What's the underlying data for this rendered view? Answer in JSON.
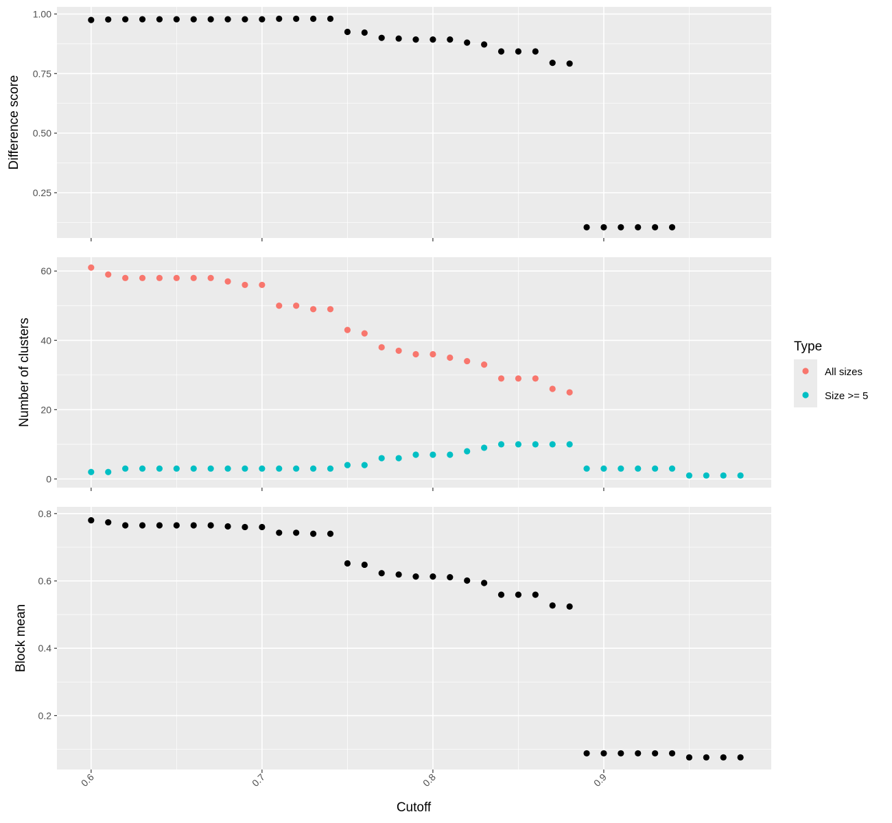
{
  "chart_data": {
    "type": "scatter",
    "xlabel": "Cutoff",
    "x_ticks": [
      0.6,
      0.7,
      0.8,
      0.9
    ],
    "x_tick_labels": [
      "0.6",
      "0.7",
      "0.8",
      "0.9"
    ],
    "xlim": [
      0.58,
      0.998
    ],
    "grid": true,
    "legend": {
      "title": "Type",
      "position": "right",
      "entries": [
        {
          "label": "All sizes",
          "color": "#F8766D"
        },
        {
          "label": "Size >= 5",
          "color": "#00BFC4"
        }
      ]
    },
    "panels": [
      {
        "ylabel": "Difference score",
        "ylim": [
          0.06,
          1.03
        ],
        "y_ticks": [
          0.25,
          0.5,
          0.75,
          1.0
        ],
        "y_tick_labels": [
          "0.25",
          "0.50",
          "0.75",
          "1.00"
        ],
        "series": [
          {
            "color": "#000000",
            "x": [
              0.6,
              0.61,
              0.62,
              0.63,
              0.64,
              0.65,
              0.66,
              0.67,
              0.68,
              0.69,
              0.7,
              0.71,
              0.72,
              0.73,
              0.74,
              0.75,
              0.76,
              0.77,
              0.78,
              0.79,
              0.8,
              0.81,
              0.82,
              0.83,
              0.84,
              0.85,
              0.86,
              0.87,
              0.88,
              0.89,
              0.9,
              0.91,
              0.92,
              0.93,
              0.94
            ],
            "y": [
              0.975,
              0.977,
              0.978,
              0.978,
              0.978,
              0.978,
              0.978,
              0.978,
              0.978,
              0.978,
              0.978,
              0.98,
              0.98,
              0.98,
              0.98,
              0.925,
              0.922,
              0.9,
              0.897,
              0.893,
              0.893,
              0.893,
              0.88,
              0.872,
              0.843,
              0.843,
              0.843,
              0.795,
              0.792,
              0.105,
              0.105,
              0.105,
              0.105,
              0.105,
              0.105
            ]
          }
        ]
      },
      {
        "ylabel": "Number of clusters",
        "ylim": [
          -2.5,
          64
        ],
        "y_ticks": [
          0,
          20,
          40,
          60
        ],
        "y_tick_labels": [
          "0",
          "20",
          "40",
          "60"
        ],
        "series": [
          {
            "name": "All sizes",
            "color": "#F8766D",
            "x": [
              0.6,
              0.61,
              0.62,
              0.63,
              0.64,
              0.65,
              0.66,
              0.67,
              0.68,
              0.69,
              0.7,
              0.71,
              0.72,
              0.73,
              0.74,
              0.75,
              0.76,
              0.77,
              0.78,
              0.79,
              0.8,
              0.81,
              0.82,
              0.83,
              0.84,
              0.85,
              0.86,
              0.87,
              0.88
            ],
            "y": [
              61,
              59,
              58,
              58,
              58,
              58,
              58,
              58,
              57,
              56,
              56,
              50,
              50,
              49,
              49,
              43,
              42,
              38,
              37,
              36,
              36,
              35,
              34,
              33,
              29,
              29,
              29,
              26,
              25
            ]
          },
          {
            "name": "Size >= 5",
            "color": "#00BFC4",
            "x": [
              0.6,
              0.61,
              0.62,
              0.63,
              0.64,
              0.65,
              0.66,
              0.67,
              0.68,
              0.69,
              0.7,
              0.71,
              0.72,
              0.73,
              0.74,
              0.75,
              0.76,
              0.77,
              0.78,
              0.79,
              0.8,
              0.81,
              0.82,
              0.83,
              0.84,
              0.85,
              0.86,
              0.87,
              0.88,
              0.89,
              0.9,
              0.91,
              0.92,
              0.93,
              0.94,
              0.95,
              0.96,
              0.97,
              0.98
            ],
            "y": [
              2,
              2,
              3,
              3,
              3,
              3,
              3,
              3,
              3,
              3,
              3,
              3,
              3,
              3,
              3,
              4,
              4,
              6,
              6,
              7,
              7,
              7,
              8,
              9,
              10,
              10,
              10,
              10,
              10,
              3,
              3,
              3,
              3,
              3,
              3,
              1,
              1,
              1,
              1
            ]
          }
        ]
      },
      {
        "ylabel": "Block mean",
        "ylim": [
          0.04,
          0.82
        ],
        "y_ticks": [
          0.2,
          0.4,
          0.6,
          0.8
        ],
        "y_tick_labels": [
          "0.2",
          "0.4",
          "0.6",
          "0.8"
        ],
        "series": [
          {
            "color": "#000000",
            "x": [
              0.6,
              0.61,
              0.62,
              0.63,
              0.64,
              0.65,
              0.66,
              0.67,
              0.68,
              0.69,
              0.7,
              0.71,
              0.72,
              0.73,
              0.74,
              0.75,
              0.76,
              0.77,
              0.78,
              0.79,
              0.8,
              0.81,
              0.82,
              0.83,
              0.84,
              0.85,
              0.86,
              0.87,
              0.88,
              0.89,
              0.9,
              0.91,
              0.92,
              0.93,
              0.94,
              0.95,
              0.96,
              0.97,
              0.98
            ],
            "y": [
              0.78,
              0.774,
              0.765,
              0.765,
              0.765,
              0.765,
              0.765,
              0.765,
              0.762,
              0.76,
              0.76,
              0.743,
              0.743,
              0.74,
              0.74,
              0.652,
              0.648,
              0.623,
              0.619,
              0.613,
              0.613,
              0.611,
              0.601,
              0.594,
              0.559,
              0.559,
              0.559,
              0.527,
              0.524,
              0.088,
              0.088,
              0.088,
              0.088,
              0.088,
              0.088,
              0.076,
              0.076,
              0.076,
              0.076
            ]
          }
        ]
      }
    ]
  }
}
